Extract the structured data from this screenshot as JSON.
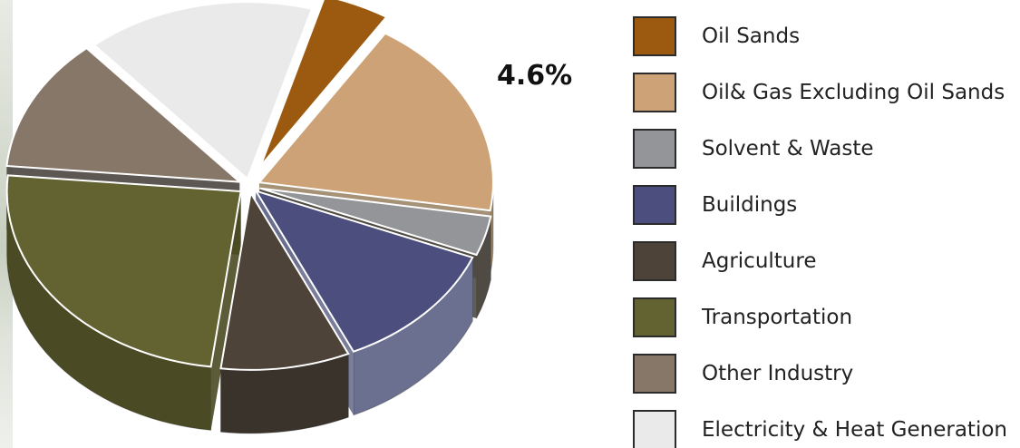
{
  "chart_data": {
    "type": "pie",
    "title": "",
    "style": "3d-exploded",
    "legend_position": "right",
    "slices": [
      {
        "label": "Oil Sands",
        "value": 4.6,
        "color": "#9b5a0f",
        "side_color": "#1f1f1f",
        "annotation": "4.6%"
      },
      {
        "label": "Oil& Gas Excluding Oil Sands",
        "value": 18.5,
        "color": "#cda276",
        "side_color": "#9c8668"
      },
      {
        "label": "Solvent & Waste",
        "value": 3.6,
        "color": "#939598",
        "side_color": "#4f4a44"
      },
      {
        "label": "Buildings",
        "value": 12.0,
        "color": "#4c4f7e",
        "side_color": "#6b7090"
      },
      {
        "label": "Agriculture",
        "value": 8.9,
        "color": "#4d4339",
        "side_color": "#3a332c"
      },
      {
        "label": "Transportation",
        "value": 24.4,
        "color": "#636331",
        "side_color": "#4a4a24"
      },
      {
        "label": "Other Industry",
        "value": 12.2,
        "color": "#877769",
        "side_color": "#4a4540"
      },
      {
        "label": "Electricity & Heat Generation",
        "value": 15.8,
        "color": "#ebeaea",
        "side_color": "#c8c8c8"
      }
    ]
  }
}
